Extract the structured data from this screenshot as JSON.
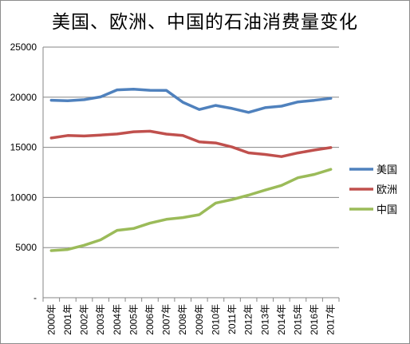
{
  "chart_data": {
    "type": "line",
    "title": "美国、欧洲、中国的石油消费量变化",
    "categories": [
      "2000年",
      "2001年",
      "2002年",
      "2003年",
      "2004年",
      "2005年",
      "2006年",
      "2007年",
      "2008年",
      "2009年",
      "2010年",
      "2011年",
      "2012年",
      "2013年",
      "2014年",
      "2015年",
      "2016年",
      "2017年"
    ],
    "series": [
      {
        "name": "美国",
        "color": "#4f81bd",
        "values": [
          19700,
          19650,
          19750,
          20030,
          20730,
          20800,
          20690,
          20680,
          19500,
          18770,
          19180,
          18880,
          18490,
          18960,
          19110,
          19530,
          19690,
          19890
        ]
      },
      {
        "name": "欧洲",
        "color": "#c0504d",
        "values": [
          15930,
          16180,
          16130,
          16230,
          16330,
          16550,
          16610,
          16320,
          16190,
          15540,
          15440,
          15030,
          14450,
          14290,
          14080,
          14440,
          14730,
          14980
        ]
      },
      {
        "name": "中国",
        "color": "#9bbb59",
        "values": [
          4700,
          4810,
          5230,
          5770,
          6720,
          6900,
          7440,
          7820,
          7990,
          8280,
          9440,
          9790,
          10230,
          10730,
          11200,
          11970,
          12300,
          12800
        ]
      }
    ],
    "yticks": [
      "-",
      "5000",
      "10000",
      "15000",
      "20000",
      "25000"
    ],
    "ylim": [
      0,
      25000
    ],
    "grid": true,
    "legend": "right"
  }
}
